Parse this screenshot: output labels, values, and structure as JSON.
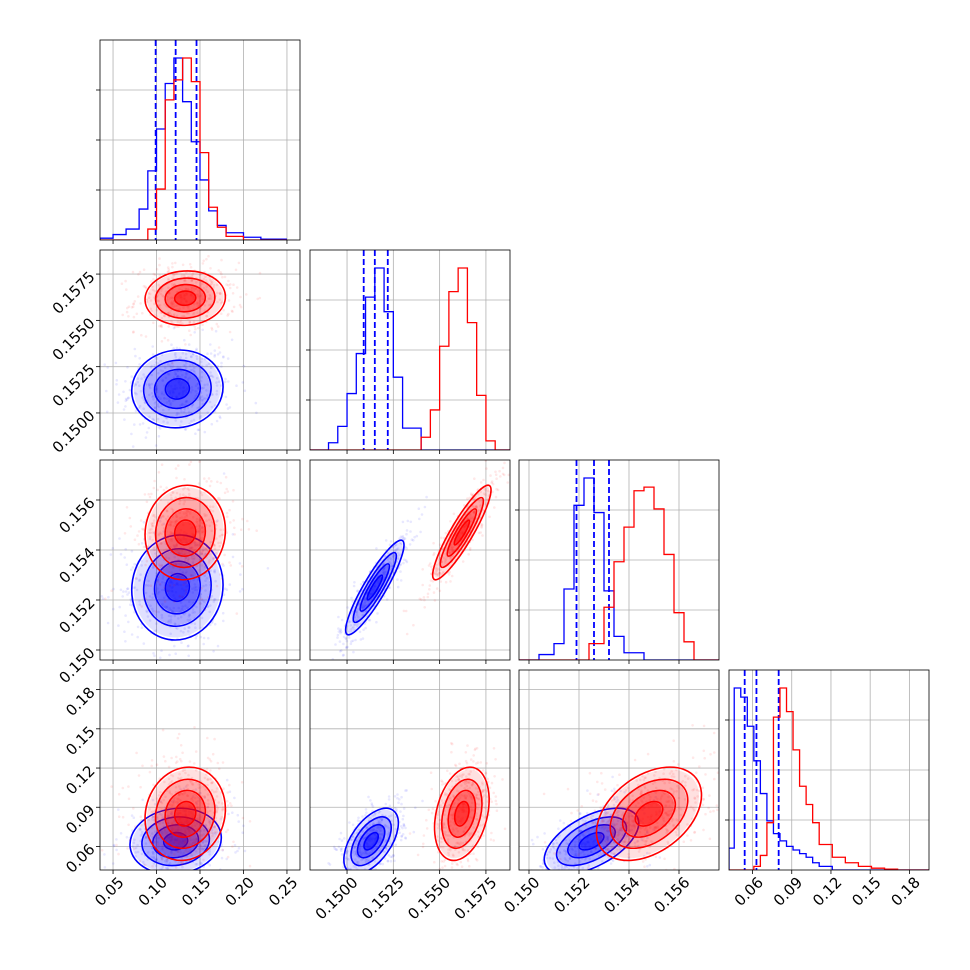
{
  "chart_data": {
    "type": "corner",
    "colors": {
      "blue": "#0000ff",
      "red": "#ff0000"
    },
    "parameters": [
      {
        "range": [
          0.035,
          0.265
        ],
        "ticks": [
          0.05,
          0.1,
          0.15,
          0.2,
          0.25
        ],
        "tick_labels": [
          "0.05",
          "0.10",
          "0.15",
          "0.20",
          "0.25"
        ]
      },
      {
        "range": [
          0.148,
          0.1588
        ],
        "ticks": [
          0.15,
          0.1525,
          0.155,
          0.1575
        ],
        "tick_labels": [
          "0.1500",
          "0.1525",
          "0.1550",
          "0.1575"
        ]
      },
      {
        "range": [
          0.1496,
          0.1576
        ],
        "ticks": [
          0.15,
          0.152,
          0.154,
          0.156
        ],
        "tick_labels": [
          "0.150",
          "0.152",
          "0.154",
          "0.156"
        ]
      },
      {
        "range": [
          0.042,
          0.195
        ],
        "ticks": [
          0.06,
          0.09,
          0.12,
          0.15,
          0.18
        ],
        "tick_labels": [
          "0.06",
          "0.09",
          "0.12",
          "0.15",
          "0.18"
        ]
      }
    ],
    "series": [
      {
        "color": "blue",
        "quantiles": [
          [
            0.099,
            0.122,
            0.146
          ],
          [
            0.1509,
            0.1515,
            0.1522
          ],
          [
            0.1519,
            0.1526,
            0.1532
          ],
          [
            0.054,
            0.063,
            0.08
          ]
        ],
        "hist": [
          {
            "bins": [
              0.035,
              0.05,
              0.065,
              0.08,
              0.09,
              0.1,
              0.11,
              0.12,
              0.13,
              0.14,
              0.15,
              0.16,
              0.17,
              0.18,
              0.2,
              0.22,
              0.25
            ],
            "values": [
              0.01,
              0.03,
              0.06,
              0.17,
              0.38,
              0.61,
              0.86,
              1.0,
              0.76,
              0.54,
              0.33,
              0.16,
              0.08,
              0.04,
              0.015,
              0.005
            ]
          },
          {
            "bins": [
              0.148,
              0.149,
              0.1495,
              0.15,
              0.1505,
              0.151,
              0.1515,
              0.152,
              0.1525,
              0.153,
              0.154,
              0.1588
            ],
            "values": [
              0.0,
              0.04,
              0.13,
              0.31,
              0.53,
              0.84,
              1.0,
              0.76,
              0.4,
              0.12,
              0.0
            ]
          },
          {
            "bins": [
              0.1496,
              0.1504,
              0.151,
              0.1514,
              0.1518,
              0.1522,
              0.1526,
              0.153,
              0.1534,
              0.1538,
              0.1546,
              0.1576
            ],
            "values": [
              0.0,
              0.03,
              0.09,
              0.39,
              0.85,
              1.0,
              0.81,
              0.38,
              0.13,
              0.04,
              0.0
            ]
          },
          {
            "bins": [
              0.042,
              0.046,
              0.051,
              0.056,
              0.061,
              0.066,
              0.071,
              0.076,
              0.081,
              0.086,
              0.091,
              0.096,
              0.101,
              0.106,
              0.111,
              0.121,
              0.195
            ],
            "values": [
              0.12,
              1.0,
              0.95,
              0.79,
              0.6,
              0.42,
              0.27,
              0.2,
              0.16,
              0.13,
              0.11,
              0.09,
              0.07,
              0.04,
              0.02,
              0.0
            ]
          }
        ],
        "cloud": [
          {
            "i": 1,
            "j": 0,
            "center": [
              0.124,
              0.1513
            ],
            "sd": [
              0.025,
              0.001
            ],
            "rho": 0.05
          },
          {
            "i": 2,
            "j": 0,
            "center": [
              0.124,
              0.1525
            ],
            "sd": [
              0.025,
              0.001
            ],
            "rho": 0.05
          },
          {
            "i": 2,
            "j": 1,
            "center": [
              0.1515,
              0.1525
            ],
            "sd": [
              0.00075,
              0.0009
            ],
            "rho": 0.9
          },
          {
            "i": 3,
            "j": 0,
            "center": [
              0.122,
              0.064
            ],
            "sd": [
              0.025,
              0.012
            ],
            "rho": 0.1
          },
          {
            "i": 3,
            "j": 1,
            "center": [
              0.1513,
              0.064
            ],
            "sd": [
              0.0007,
              0.012
            ],
            "rho": 0.55
          },
          {
            "i": 3,
            "j": 2,
            "center": [
              0.1525,
              0.064
            ],
            "sd": [
              0.0009,
              0.012
            ],
            "rho": 0.55
          }
        ]
      },
      {
        "color": "red",
        "quantiles": [],
        "hist": [
          {
            "bins": [
              0.035,
              0.09,
              0.1,
              0.11,
              0.12,
              0.13,
              0.14,
              0.15,
              0.16,
              0.17,
              0.18,
              0.2,
              0.25
            ],
            "values": [
              0.0,
              0.06,
              0.28,
              0.77,
              0.88,
              1.0,
              0.87,
              0.48,
              0.18,
              0.07,
              0.02,
              0.0
            ]
          },
          {
            "bins": [
              0.148,
              0.154,
              0.1545,
              0.155,
              0.1555,
              0.156,
              0.1565,
              0.157,
              0.1575,
              0.158,
              0.1588
            ],
            "values": [
              0.0,
              0.07,
              0.22,
              0.57,
              0.87,
              1.0,
              0.7,
              0.3,
              0.05,
              0.0
            ]
          },
          {
            "bins": [
              0.1496,
              0.1524,
              0.153,
              0.1534,
              0.1538,
              0.1542,
              0.1546,
              0.155,
              0.1554,
              0.1558,
              0.1562,
              0.1566,
              0.1576
            ],
            "values": [
              0.0,
              0.09,
              0.29,
              0.54,
              0.73,
              0.93,
              0.95,
              0.83,
              0.58,
              0.26,
              0.1,
              0.0
            ]
          },
          {
            "bins": [
              0.042,
              0.061,
              0.066,
              0.071,
              0.076,
              0.081,
              0.086,
              0.091,
              0.096,
              0.101,
              0.106,
              0.111,
              0.121,
              0.131,
              0.141,
              0.151,
              0.161,
              0.171,
              0.195
            ],
            "values": [
              0.0,
              0.02,
              0.08,
              0.26,
              0.84,
              1.0,
              0.87,
              0.66,
              0.46,
              0.36,
              0.26,
              0.14,
              0.07,
              0.04,
              0.02,
              0.01,
              0.005,
              0.0
            ]
          }
        ],
        "cloud": [
          {
            "i": 1,
            "j": 0,
            "center": [
              0.133,
              0.1562
            ],
            "sd": [
              0.022,
              0.0007
            ],
            "rho": 0.05
          },
          {
            "i": 2,
            "j": 0,
            "center": [
              0.133,
              0.1547
            ],
            "sd": [
              0.022,
              0.0009
            ],
            "rho": 0.05
          },
          {
            "i": 2,
            "j": 1,
            "center": [
              0.1562,
              0.1547
            ],
            "sd": [
              0.00075,
              0.0009
            ],
            "rho": 0.9
          },
          {
            "i": 3,
            "j": 0,
            "center": [
              0.133,
              0.085
            ],
            "sd": [
              0.022,
              0.017
            ],
            "rho": 0.1
          },
          {
            "i": 3,
            "j": 1,
            "center": [
              0.1562,
              0.085
            ],
            "sd": [
              0.0007,
              0.017
            ],
            "rho": 0.3
          },
          {
            "i": 3,
            "j": 2,
            "center": [
              0.1548,
              0.085
            ],
            "sd": [
              0.001,
              0.017
            ],
            "rho": 0.4
          }
        ]
      }
    ],
    "grid": true
  }
}
